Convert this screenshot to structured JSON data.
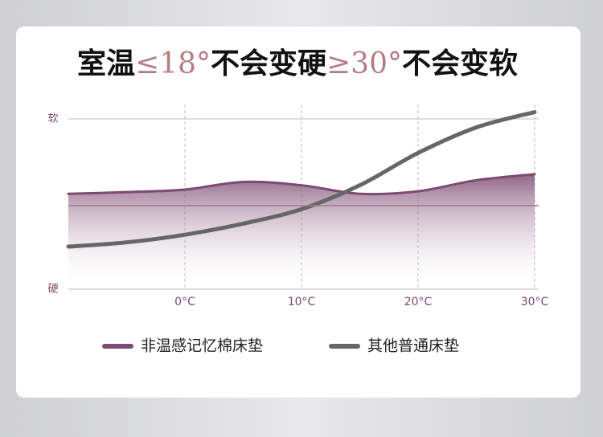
{
  "chart_data": {
    "type": "line",
    "title_parts": [
      "室温",
      "≤18°",
      "不会变硬",
      "≥30°",
      "不会变软"
    ],
    "x": [
      -10,
      -5,
      0,
      5,
      10,
      15,
      20,
      25,
      30
    ],
    "series": [
      {
        "name": "非温感记忆棉床垫",
        "color": "#7d4a72",
        "values": [
          5.6,
          5.7,
          5.85,
          6.3,
          6.1,
          5.6,
          5.75,
          6.4,
          6.75
        ],
        "fill": true
      },
      {
        "name": "其他普通床垫",
        "color": "#666666",
        "values": [
          2.5,
          2.75,
          3.2,
          3.85,
          4.7,
          6.1,
          8.0,
          9.5,
          10.4
        ]
      }
    ],
    "xlim": [
      -10,
      30
    ],
    "xticks": [
      {
        "value": 0,
        "label": "0°C"
      },
      {
        "value": 10,
        "label": "10°C"
      },
      {
        "value": 20,
        "label": "20°C"
      },
      {
        "value": 30,
        "label": "30°C"
      }
    ],
    "ylim": [
      0,
      10
    ],
    "yticks": [
      {
        "value": 0,
        "label": "硬"
      },
      {
        "value": 10,
        "label": "软"
      }
    ],
    "grid": true
  }
}
